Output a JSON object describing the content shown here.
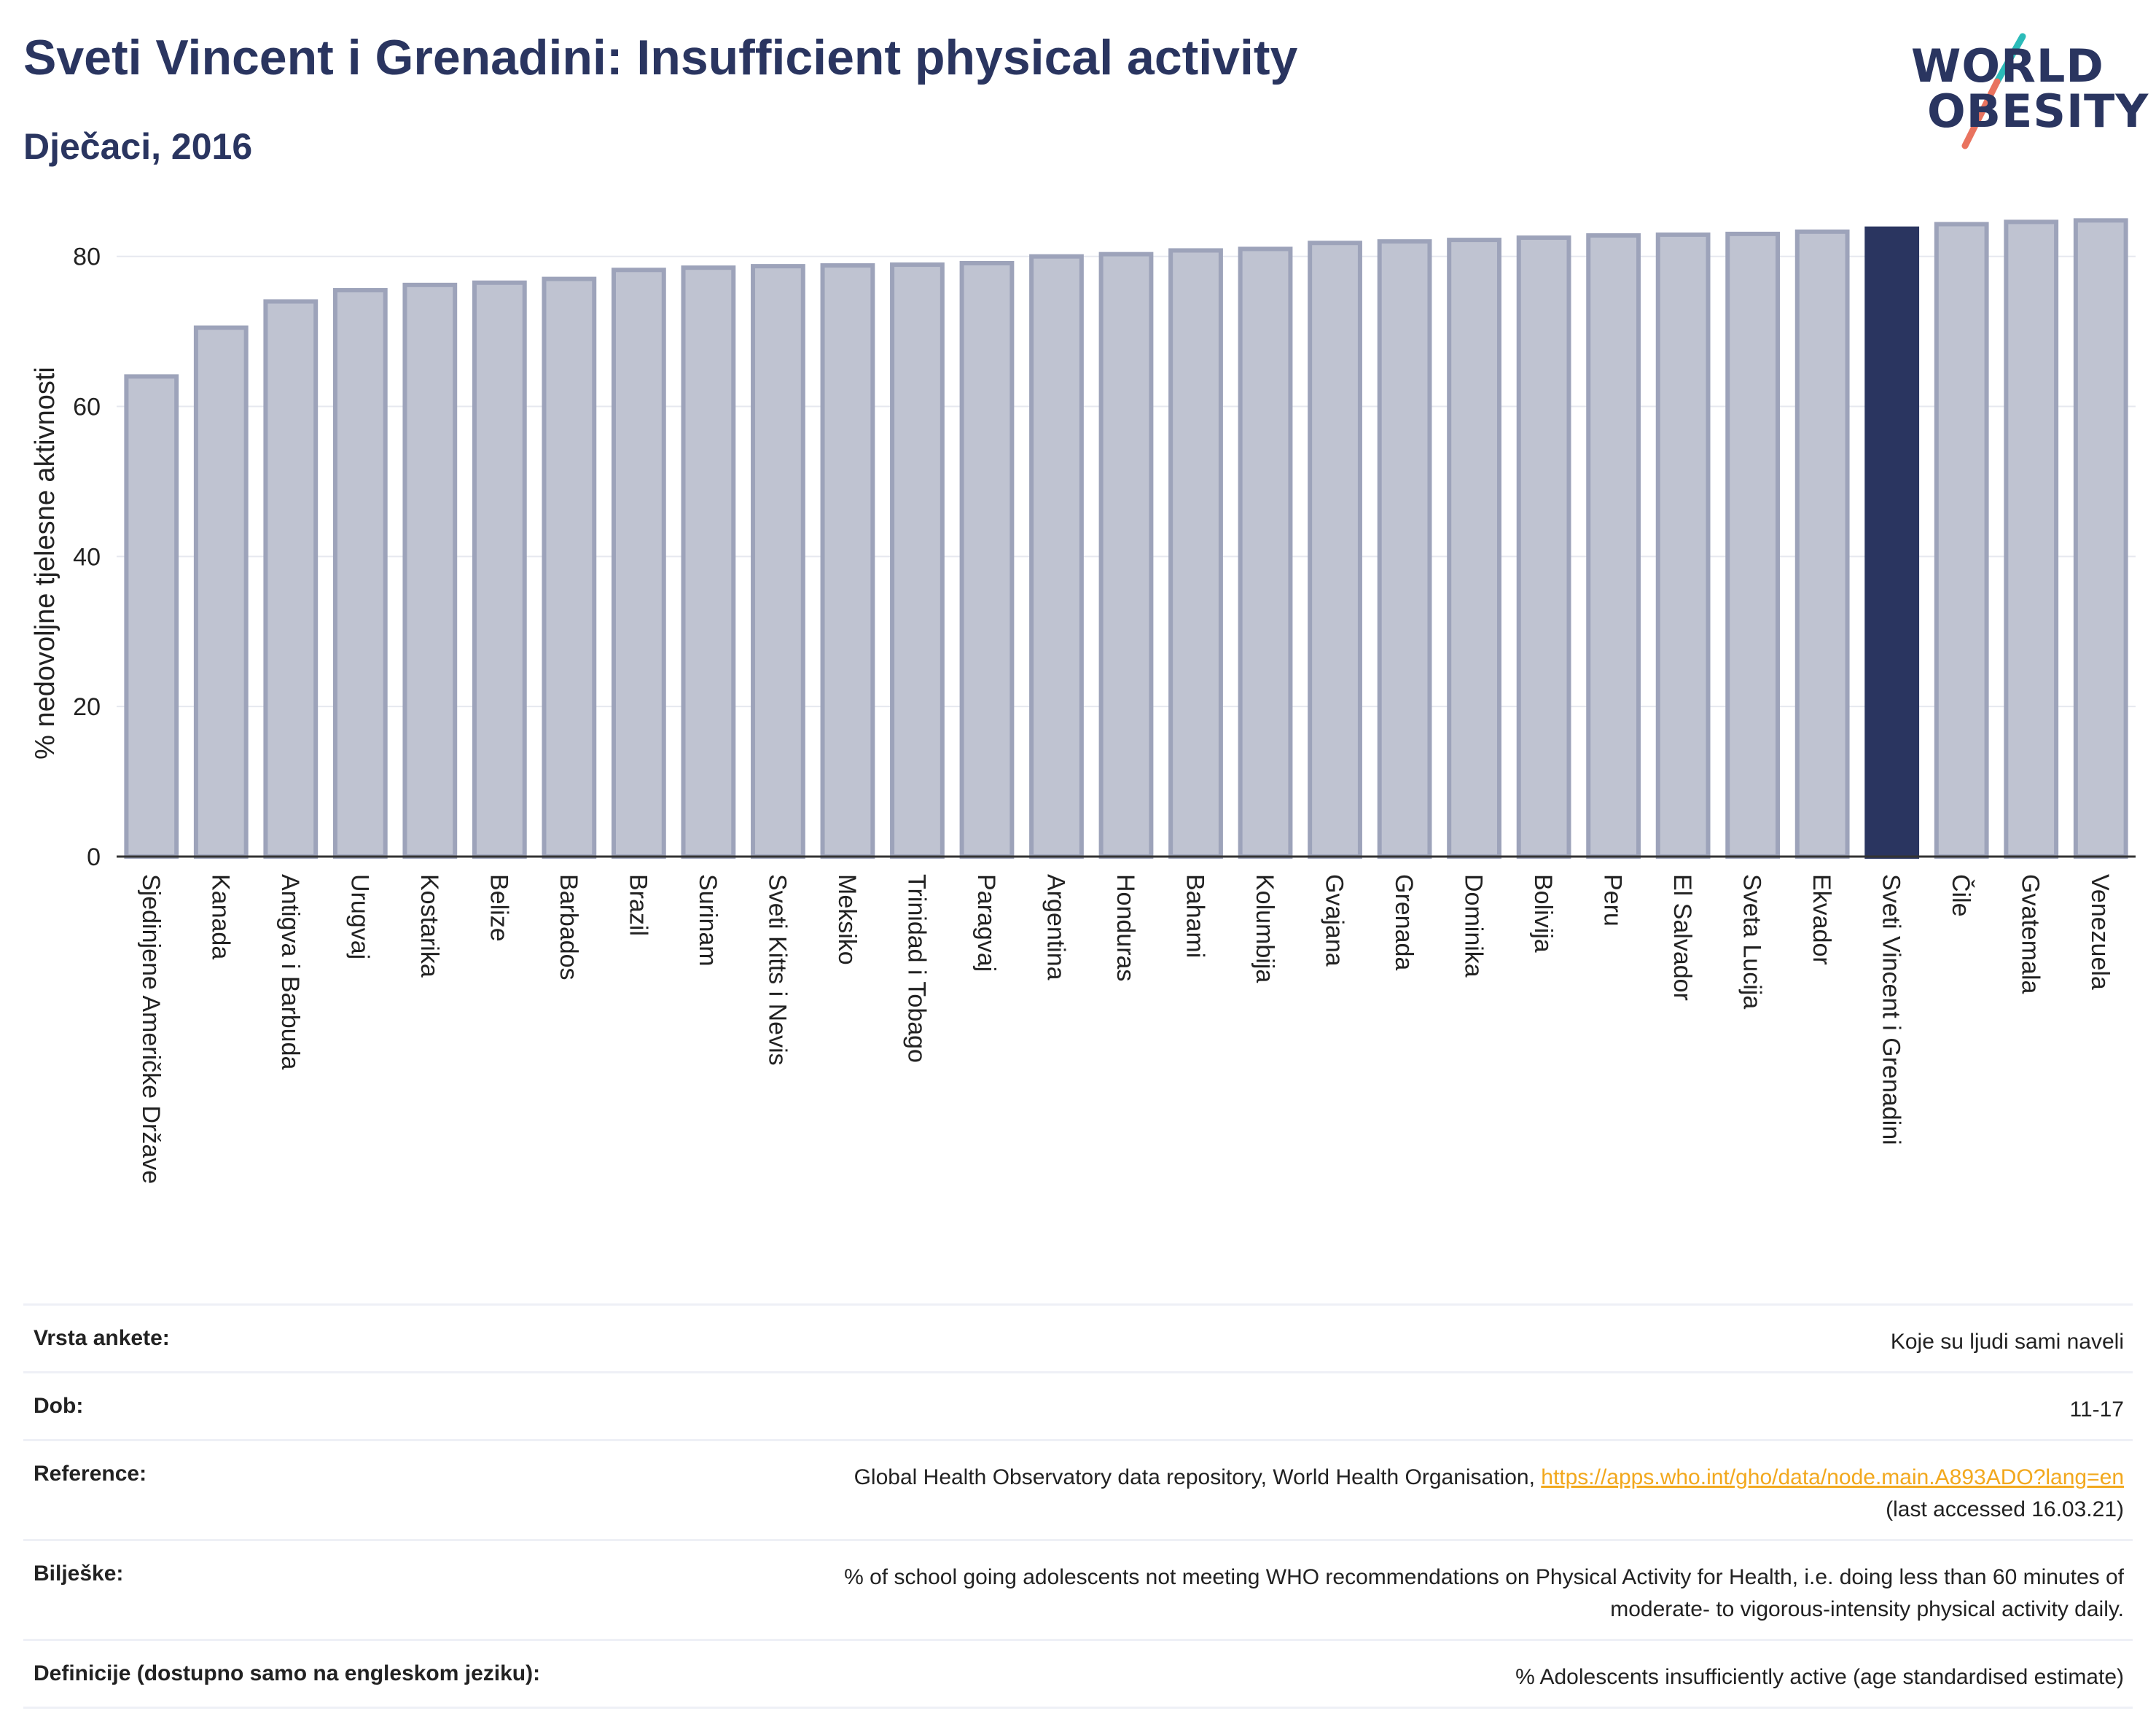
{
  "header": {
    "title": "Sveti Vincent i Grenadini: Insufficient physical activity",
    "subtitle": "Dječaci, 2016"
  },
  "logo": {
    "line1": "WORLD",
    "line2": "OBESITY",
    "colors": {
      "navy": "#2a3560",
      "teal": "#2bbbb9",
      "coral": "#e9735f"
    }
  },
  "colors": {
    "bar": "#bfc3d1",
    "bar_stroke": "#9da3ba",
    "highlight": "#2a3560",
    "axis": "#333333",
    "grid": "#e6e8ef"
  },
  "chart_data": {
    "type": "bar",
    "ylabel": "% nedovoljne tjelesne aktivnosti",
    "xlabel": "",
    "ylim": [
      0,
      86
    ],
    "yticks": [
      0,
      20,
      40,
      60,
      80
    ],
    "grid": true,
    "highlight": "Sveti Vincent i Grenadini",
    "categories": [
      "Sjedinjene Američke Države",
      "Kanada",
      "Antigva i Barbuda",
      "Urugvaj",
      "Kostarika",
      "Belize",
      "Barbados",
      "Brazil",
      "Surinam",
      "Sveti Kitts i Nevis",
      "Meksiko",
      "Trinidad i Tobago",
      "Paragvaj",
      "Argentina",
      "Honduras",
      "Bahami",
      "Kolumbija",
      "Gvajana",
      "Grenada",
      "Dominika",
      "Bolivija",
      "Peru",
      "El Salvador",
      "Sveta Lucija",
      "Ekvador",
      "Sveti Vincent i Grenadini",
      "Čile",
      "Gvatemala",
      "Venezuela"
    ],
    "values": [
      64,
      70.5,
      74,
      75.5,
      76.2,
      76.5,
      77,
      78.2,
      78.5,
      78.7,
      78.8,
      78.9,
      79.1,
      80,
      80.3,
      80.8,
      81,
      81.8,
      82,
      82.2,
      82.5,
      82.8,
      82.9,
      83,
      83.3,
      83.7,
      84.3,
      84.6,
      84.8
    ]
  },
  "meta": {
    "survey_label": "Vrsta ankete:",
    "survey_value": "Koje su ljudi sami naveli",
    "age_label": "Dob:",
    "age_value": "11-17",
    "ref_label": "Reference:",
    "ref_text": "Global Health Observatory data repository, World Health Organisation, ",
    "ref_link": "https://apps.who.int/gho/data/node.main.A893ADO?lang=en",
    "ref_accessed": "(last accessed 16.03.21)",
    "notes_label": "Bilješke:",
    "notes_line1": "% of school going adolescents not meeting WHO recommendations on Physical Activity for Health, i.e. doing less than 60 minutes of",
    "notes_line2": "moderate- to vigorous-intensity physical activity daily.",
    "def_label": "Definicije (dostupno samo na engleskom jeziku):",
    "def_value": "% Adolescents insufficiently active (age standardised estimate)"
  }
}
